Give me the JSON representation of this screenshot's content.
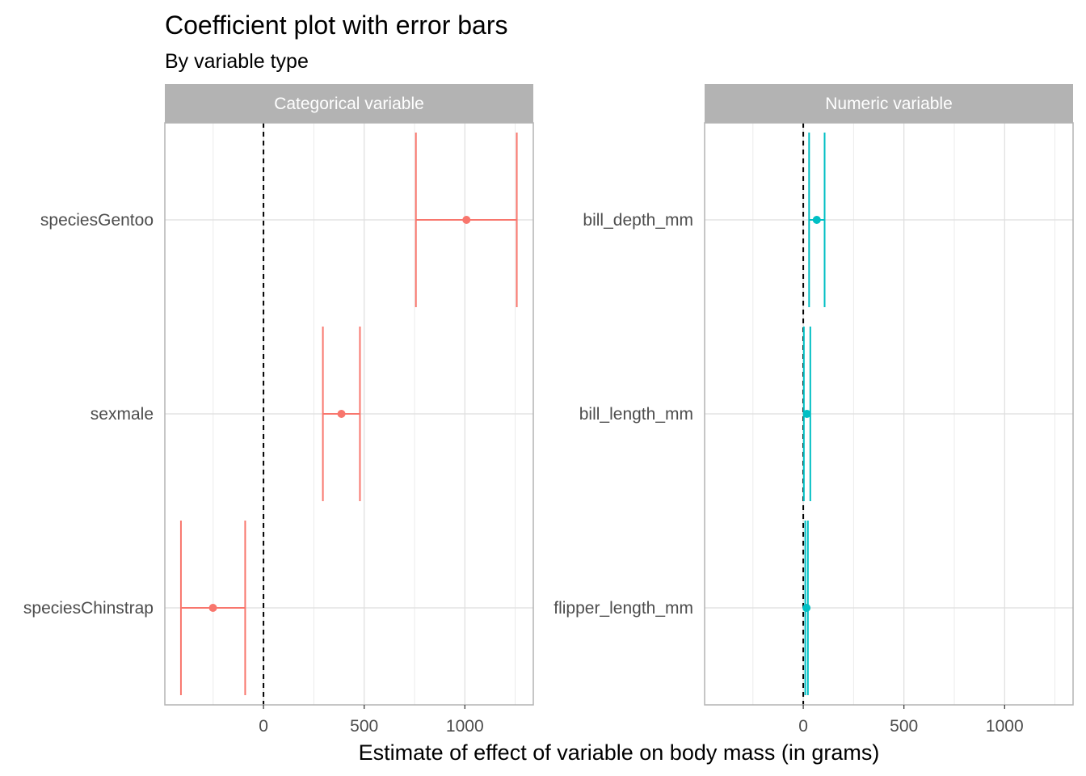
{
  "chart_data": {
    "type": "scatter",
    "title": "Coefficient plot with error bars",
    "subtitle": "By variable type",
    "xlabel": "Estimate of effect of variable on body mass (in grams)",
    "xlim": [
      -490,
      1340
    ],
    "xticks": [
      0,
      500,
      1000
    ],
    "xtick_labels": [
      "0",
      "500",
      "1000"
    ],
    "reference_line": 0,
    "grid": true,
    "facets": [
      {
        "name": "Categorical variable",
        "color": "#f8766d",
        "terms": [
          {
            "term": "speciesGentoo",
            "estimate": 1008,
            "low": 757,
            "high": 1258
          },
          {
            "term": "sexmale",
            "estimate": 387,
            "low": 295,
            "high": 479
          },
          {
            "term": "speciesChinstrap",
            "estimate": -251,
            "low": -410,
            "high": -91
          }
        ]
      },
      {
        "name": "Numeric variable",
        "color": "#00bfc4",
        "terms": [
          {
            "term": "bill_depth_mm",
            "estimate": 67,
            "low": 29,
            "high": 106
          },
          {
            "term": "bill_length_mm",
            "estimate": 18,
            "low": 3,
            "high": 35
          },
          {
            "term": "flipper_length_mm",
            "estimate": 16,
            "low": 10,
            "high": 23
          }
        ]
      }
    ]
  }
}
